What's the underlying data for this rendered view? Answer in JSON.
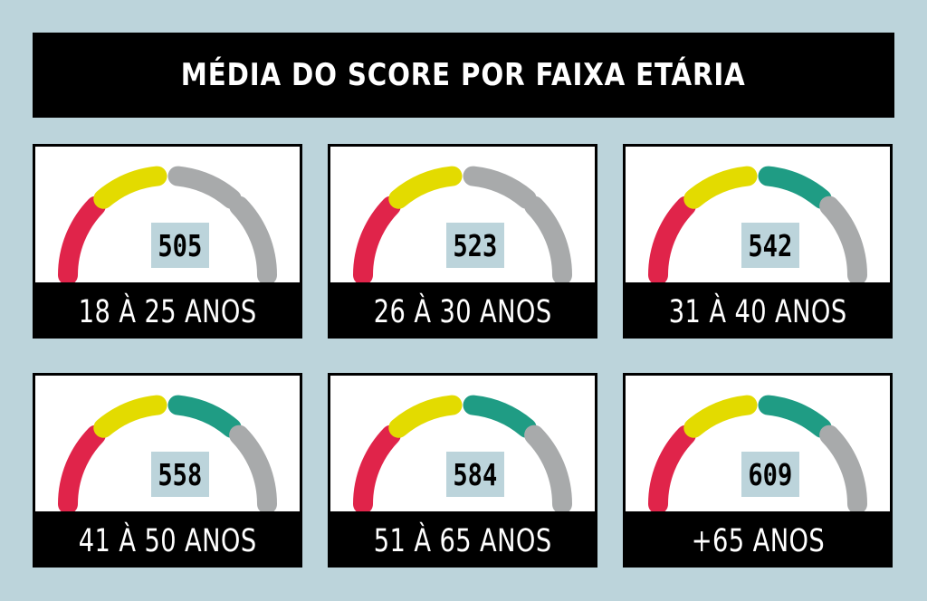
{
  "title": "MÉDIA DO SCORE POR FAIXA ETÁRIA",
  "colors": {
    "background": "#bcd4db",
    "red": "#e0244a",
    "yellow": "#e3db00",
    "green": "#1f9c84",
    "gray": "#a8aaab",
    "dark": "#000000"
  },
  "chart_data": {
    "type": "gauge",
    "title": "MÉDIA DO SCORE POR FAIXA ETÁRIA",
    "segments_order": [
      "red",
      "yellow",
      "third",
      "gray"
    ],
    "items": [
      {
        "label": "18 À 25 ANOS",
        "value": "505",
        "segment_colors": [
          "red",
          "yellow",
          "gray",
          "gray"
        ]
      },
      {
        "label": "26 À 30 ANOS",
        "value": "523",
        "segment_colors": [
          "red",
          "yellow",
          "gray",
          "gray"
        ]
      },
      {
        "label": "31 À 40 ANOS",
        "value": "542",
        "segment_colors": [
          "red",
          "yellow",
          "green",
          "gray"
        ]
      },
      {
        "label": "41 À 50 ANOS",
        "value": "558",
        "segment_colors": [
          "red",
          "yellow",
          "green",
          "gray"
        ]
      },
      {
        "label": "51 À 65 ANOS",
        "value": "584",
        "segment_colors": [
          "red",
          "yellow",
          "green",
          "gray"
        ]
      },
      {
        "label": "+65 ANOS",
        "value": "609",
        "segment_colors": [
          "red",
          "yellow",
          "green",
          "gray"
        ]
      }
    ]
  }
}
